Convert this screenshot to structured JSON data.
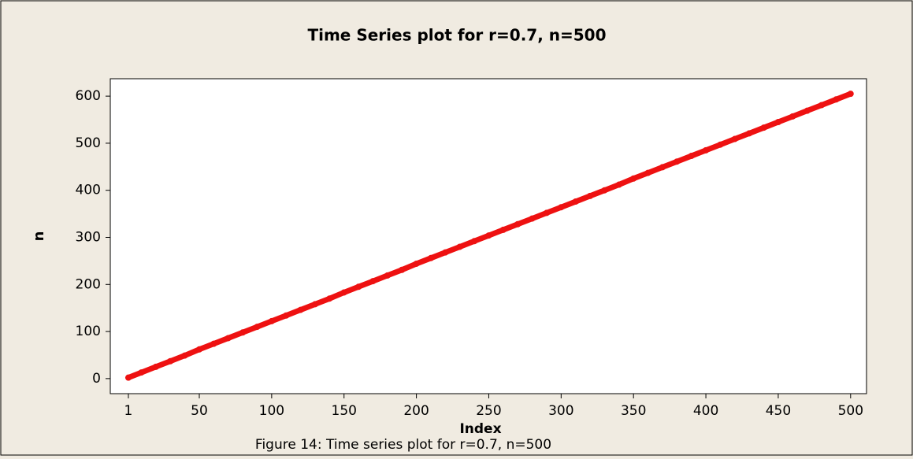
{
  "chart_data": {
    "type": "line",
    "title": "Time Series plot for r=0.7, n=500",
    "x_label": "Index",
    "y_label": "n",
    "caption": "Figure 14: Time series plot for r=0.7, n=500",
    "x": [
      1,
      10,
      20,
      30,
      40,
      50,
      60,
      70,
      80,
      90,
      100,
      110,
      120,
      130,
      140,
      150,
      160,
      170,
      180,
      190,
      200,
      210,
      220,
      230,
      240,
      250,
      260,
      270,
      280,
      290,
      300,
      310,
      320,
      330,
      340,
      350,
      360,
      370,
      380,
      390,
      400,
      410,
      420,
      430,
      440,
      450,
      460,
      470,
      480,
      490,
      500
    ],
    "series": [
      {
        "name": "n",
        "color": "#ee1111",
        "values": [
          2,
          13,
          25,
          37,
          49,
          62,
          74,
          86,
          98,
          110,
          122,
          134,
          146,
          158,
          170,
          183,
          195,
          207,
          219,
          231,
          244,
          256,
          268,
          280,
          292,
          304,
          316,
          328,
          340,
          352,
          364,
          376,
          388,
          400,
          412,
          425,
          437,
          449,
          461,
          473,
          485,
          497,
          509,
          521,
          533,
          545,
          557,
          569,
          581,
          593,
          605
        ]
      }
    ],
    "xlim": [
      -11.5,
      511
    ],
    "ylim": [
      -32,
      637
    ],
    "xticks": [
      1,
      50,
      100,
      150,
      200,
      250,
      300,
      350,
      400,
      450,
      500
    ],
    "yticks": [
      0,
      100,
      200,
      300,
      400,
      500,
      600
    ],
    "grid": false
  }
}
